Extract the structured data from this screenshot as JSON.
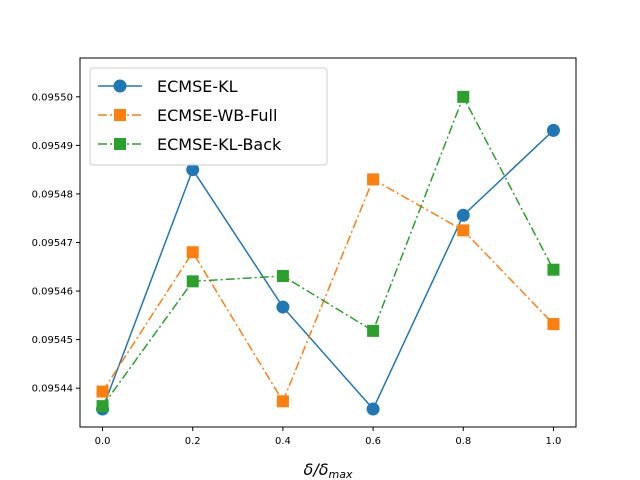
{
  "chart_data": {
    "type": "line",
    "x": [
      0.0,
      0.2,
      0.4,
      0.6,
      0.8,
      1.0
    ],
    "xlim": [
      -0.05,
      1.05
    ],
    "ylim": [
      0.095432,
      0.095508
    ],
    "xticks": [
      0.0,
      0.2,
      0.4,
      0.6,
      0.8,
      1.0
    ],
    "xtick_labels": [
      "0.0",
      "0.2",
      "0.4",
      "0.6",
      "0.8",
      "1.0"
    ],
    "yticks": [
      0.09544,
      0.09545,
      0.09546,
      0.09547,
      0.09548,
      0.09549,
      0.0955
    ],
    "ytick_labels": [
      "0.09544",
      "0.09545",
      "0.09546",
      "0.09547",
      "0.09548",
      "0.09549",
      "0.09550"
    ],
    "xlabel": "δ/δ",
    "xlabel_sub": "max",
    "ylabel": "",
    "title": "",
    "grid": false,
    "legend_position": "top-left",
    "series": [
      {
        "name": "ECMSE-KL",
        "values": [
          0.0954357,
          0.095485,
          0.0954567,
          0.0954357,
          0.0954756,
          0.0954931
        ],
        "color": "#1f77b4",
        "marker": "circle",
        "linestyle": "solid"
      },
      {
        "name": "ECMSE-WB-Full",
        "values": [
          0.0954393,
          0.095468,
          0.0954373,
          0.095483,
          0.0954725,
          0.0954532
        ],
        "color": "#ff7f0e",
        "marker": "square",
        "linestyle": "dashdot"
      },
      {
        "name": "ECMSE-KL-Back",
        "values": [
          0.0954363,
          0.095462,
          0.0954631,
          0.0954518,
          0.0955,
          0.0954644
        ],
        "color": "#2ca02c",
        "marker": "square",
        "linestyle": "dashdot"
      }
    ]
  }
}
